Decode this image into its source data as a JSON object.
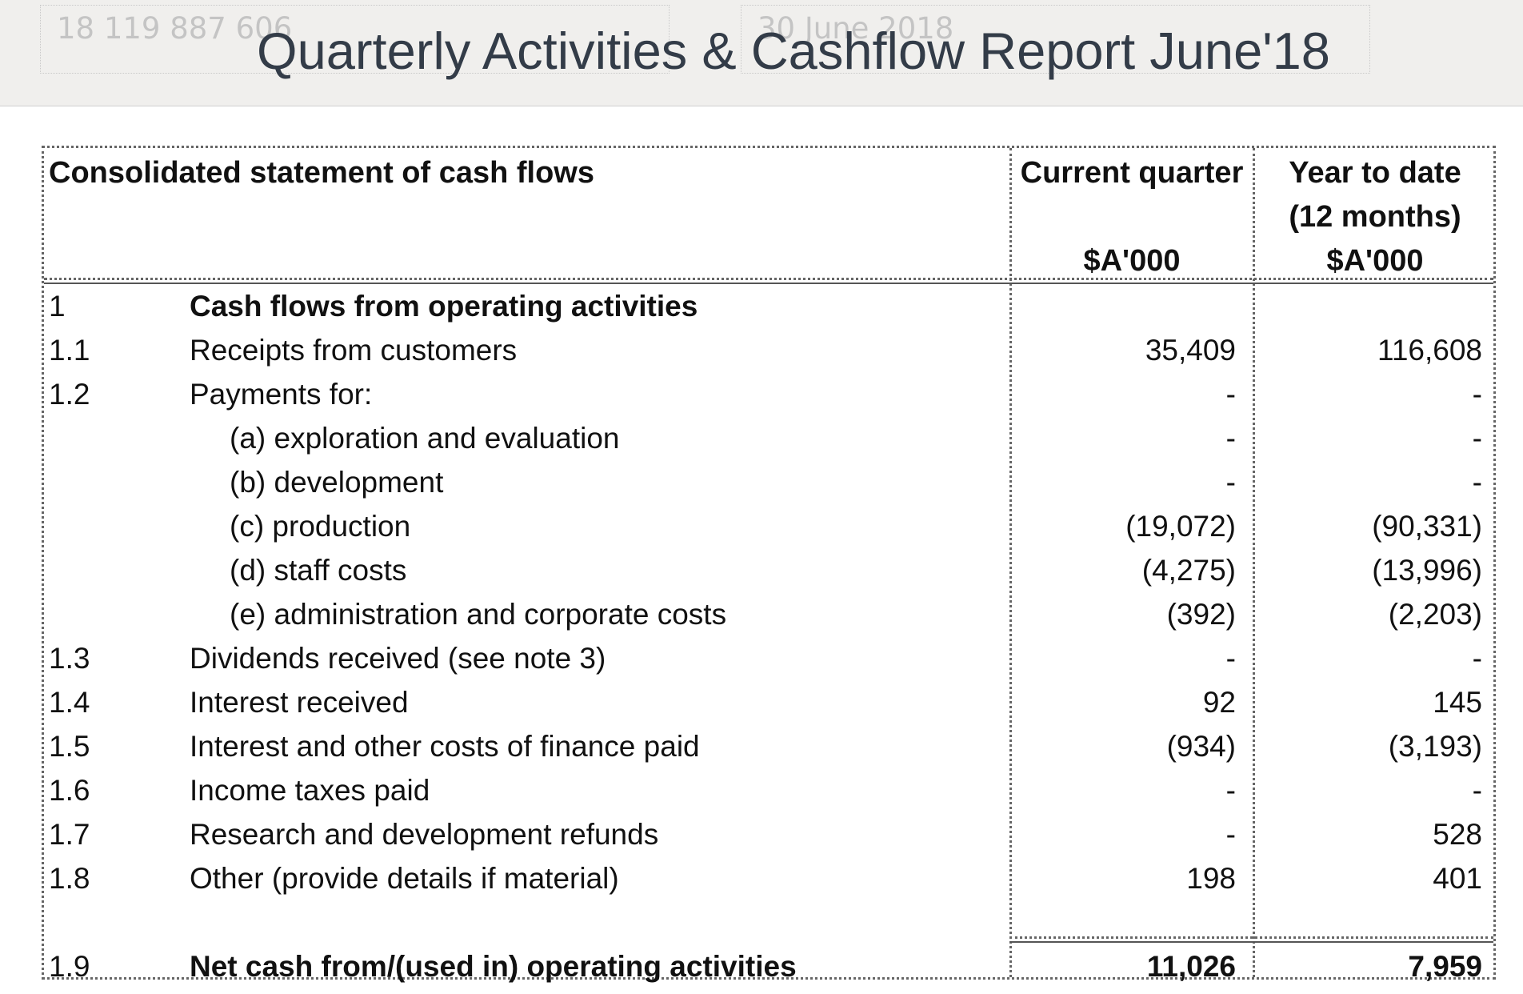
{
  "banner": {
    "abn": "18 119 887 606",
    "period": "30 June 2018",
    "title": "Quarterly Activities & Cashflow Report June'18"
  },
  "statement": {
    "heading": "Consolidated statement of cash flows",
    "col_current": "Current quarter",
    "col_current_unit": "$A'000",
    "col_ytd": "Year to date",
    "col_ytd_sub": "(12 months)",
    "col_ytd_unit": "$A'000",
    "rows": [
      {
        "num": "1",
        "label": "Cash flows from operating activities",
        "cq": "",
        "ytd": ""
      },
      {
        "num": "1.1",
        "label": "Receipts from customers",
        "cq": "35,409",
        "ytd": "116,608"
      },
      {
        "num": "1.2",
        "label": "Payments for:",
        "cq": "-",
        "ytd": "-"
      },
      {
        "num": "",
        "label": "(a)  exploration and evaluation",
        "cq": "-",
        "ytd": "-"
      },
      {
        "num": "",
        "label": "(b)  development",
        "cq": "-",
        "ytd": "-"
      },
      {
        "num": "",
        "label": "(c)  production",
        "cq": "(19,072)",
        "ytd": "(90,331)"
      },
      {
        "num": "",
        "label": "(d)  staff costs",
        "cq": "(4,275)",
        "ytd": "(13,996)"
      },
      {
        "num": "",
        "label": "(e)  administration and corporate costs",
        "cq": "(392)",
        "ytd": "(2,203)"
      },
      {
        "num": "1.3",
        "label": "Dividends received (see note 3)",
        "cq": "-",
        "ytd": "-"
      },
      {
        "num": "1.4",
        "label": "Interest received",
        "cq": "92",
        "ytd": "145"
      },
      {
        "num": "1.5",
        "label": "Interest and other costs of finance paid",
        "cq": "(934)",
        "ytd": "(3,193)"
      },
      {
        "num": "1.6",
        "label": "Income taxes paid",
        "cq": "-",
        "ytd": "-"
      },
      {
        "num": "1.7",
        "label": "Research and development refunds",
        "cq": "-",
        "ytd": "528"
      },
      {
        "num": "1.8",
        "label": "Other (provide details if material)",
        "cq": "198",
        "ytd": "401"
      },
      {
        "num": "1.9",
        "label": "Net cash from/(used in) operating activities",
        "cq": "11,026",
        "ytd": "7,959"
      }
    ]
  }
}
